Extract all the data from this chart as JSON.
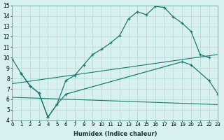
{
  "xlabel": "Humidex (Indice chaleur)",
  "bg_color": "#d8f0f0",
  "line_color": "#1a7a6e",
  "xlim": [
    0,
    23
  ],
  "ylim": [
    4,
    15
  ],
  "xticks": [
    0,
    1,
    2,
    3,
    4,
    5,
    6,
    7,
    8,
    9,
    10,
    11,
    12,
    13,
    14,
    15,
    16,
    17,
    18,
    19,
    20,
    21,
    22,
    23
  ],
  "yticks": [
    4,
    5,
    6,
    7,
    8,
    9,
    10,
    11,
    12,
    13,
    14,
    15
  ],
  "line1_x": [
    0,
    1,
    2,
    3,
    4,
    5,
    6,
    7,
    8,
    9,
    10,
    11,
    12,
    13,
    14,
    15,
    16,
    17,
    18,
    19,
    20,
    21,
    22
  ],
  "line1_y": [
    9.9,
    8.5,
    7.3,
    6.6,
    4.3,
    5.5,
    7.8,
    8.3,
    9.3,
    10.3,
    10.8,
    11.4,
    12.1,
    13.7,
    14.4,
    14.1,
    14.9,
    14.8,
    13.9,
    13.3,
    12.5,
    10.3,
    10.0
  ],
  "line2_x": [
    1,
    2,
    3,
    4,
    5,
    6,
    19,
    20,
    22,
    23
  ],
  "line2_y": [
    8.5,
    7.3,
    6.6,
    4.3,
    5.5,
    6.5,
    9.6,
    9.3,
    7.8,
    6.5
  ],
  "line3_x": [
    0,
    23
  ],
  "line3_y": [
    7.5,
    10.3
  ],
  "line4_x": [
    0,
    23
  ],
  "line4_y": [
    6.2,
    5.5
  ]
}
